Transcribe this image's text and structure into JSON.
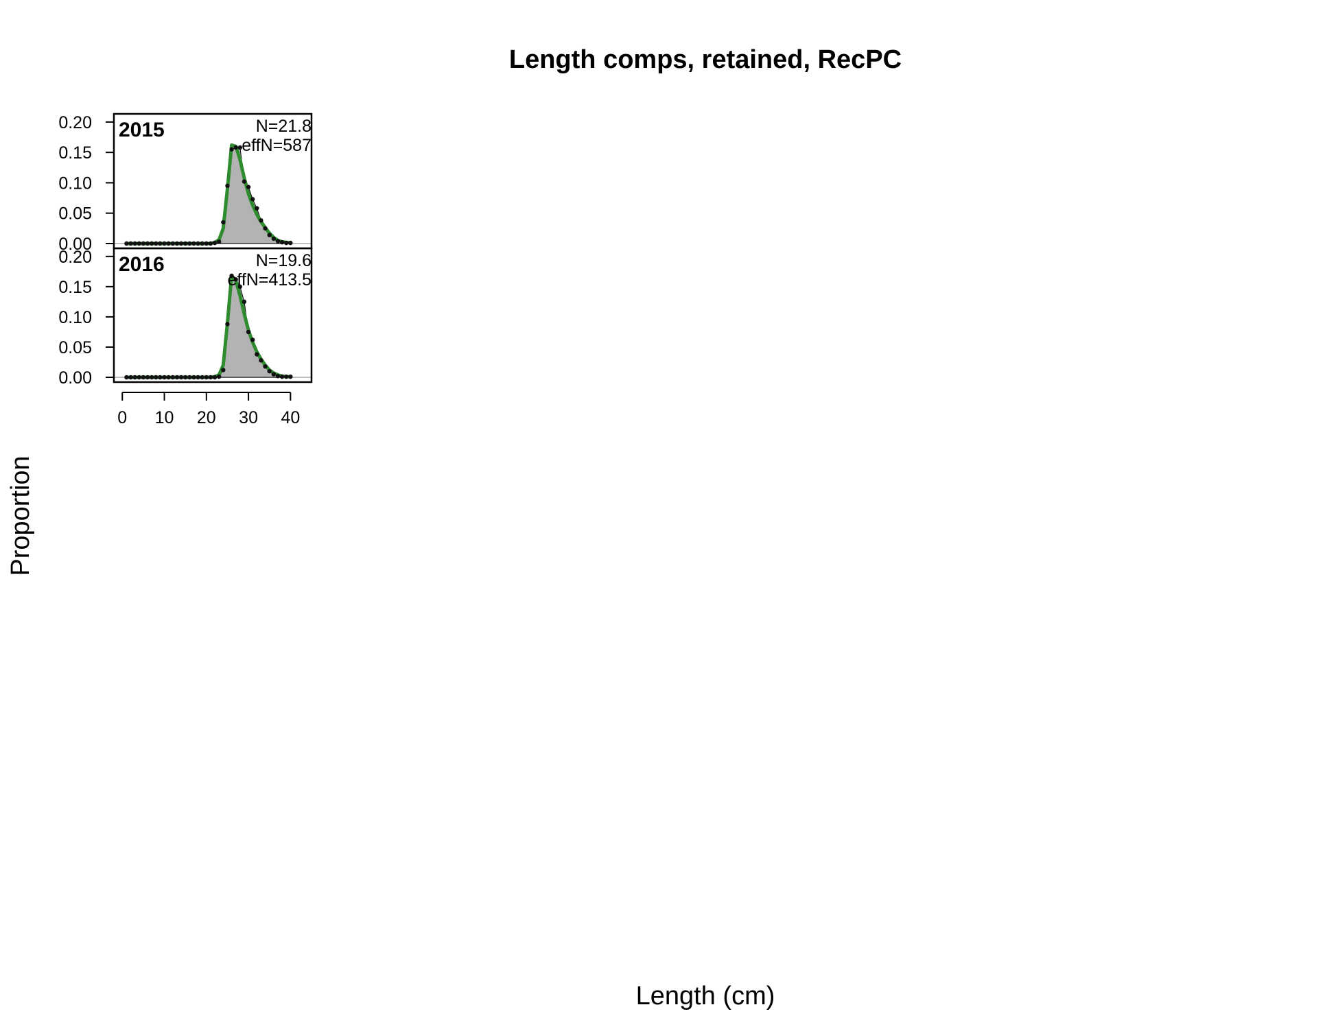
{
  "chart_data": {
    "type": "line",
    "title": "Length comps, retained, RecPC",
    "xlabel": "Length (cm)",
    "ylabel": "Proportion",
    "xlim": [
      -2,
      45
    ],
    "ylim": [
      0,
      0.21
    ],
    "x_ticks": [
      0,
      10,
      20,
      30,
      40
    ],
    "y_ticks": [
      0.0,
      0.05,
      0.1,
      0.15,
      0.2
    ],
    "x_tick_labels": [
      "0",
      "10",
      "20",
      "30",
      "40"
    ],
    "y_tick_labels": [
      "0.00",
      "0.05",
      "0.10",
      "0.15",
      "0.20"
    ],
    "colors": {
      "observed_fill": "#b3b3b3",
      "expected_line": "#2e8b2e",
      "points": "#111111",
      "zero_line": "#bfbfbf"
    },
    "panels": [
      {
        "year": "2015",
        "n_label": "N=21.8",
        "effn_label": "effN=587",
        "x": [
          1,
          2,
          3,
          4,
          5,
          6,
          7,
          8,
          9,
          10,
          11,
          12,
          13,
          14,
          15,
          16,
          17,
          18,
          19,
          20,
          21,
          22,
          23,
          24,
          25,
          26,
          27,
          28,
          29,
          30,
          31,
          32,
          33,
          34,
          35,
          36,
          37,
          38,
          39,
          40
        ],
        "observed": [
          0,
          0,
          0,
          0,
          0,
          0,
          0,
          0,
          0,
          0,
          0,
          0,
          0,
          0,
          0,
          0,
          0,
          0,
          0,
          0,
          0,
          0.001,
          0.003,
          0.035,
          0.095,
          0.155,
          0.158,
          0.158,
          0.102,
          0.093,
          0.073,
          0.058,
          0.038,
          0.025,
          0.014,
          0.008,
          0.004,
          0.002,
          0.001,
          0.001
        ],
        "expected": [
          0,
          0,
          0,
          0,
          0,
          0,
          0,
          0,
          0,
          0,
          0,
          0,
          0,
          0,
          0,
          0,
          0,
          0,
          0,
          0,
          0,
          0.002,
          0.006,
          0.025,
          0.09,
          0.162,
          0.16,
          0.138,
          0.108,
          0.082,
          0.063,
          0.048,
          0.036,
          0.026,
          0.017,
          0.01,
          0.005,
          0.003,
          0.002,
          0.001
        ]
      },
      {
        "year": "2016",
        "n_label": "N=19.6",
        "effn_label": "effN=413.5",
        "x": [
          1,
          2,
          3,
          4,
          5,
          6,
          7,
          8,
          9,
          10,
          11,
          12,
          13,
          14,
          15,
          16,
          17,
          18,
          19,
          20,
          21,
          22,
          23,
          24,
          25,
          26,
          27,
          28,
          29,
          30,
          31,
          32,
          33,
          34,
          35,
          36,
          37,
          38,
          39,
          40
        ],
        "observed": [
          0,
          0,
          0,
          0,
          0,
          0,
          0,
          0,
          0,
          0,
          0,
          0,
          0,
          0,
          0,
          0,
          0,
          0,
          0,
          0,
          0,
          0,
          0.001,
          0.012,
          0.088,
          0.168,
          0.162,
          0.15,
          0.125,
          0.075,
          0.062,
          0.038,
          0.028,
          0.018,
          0.01,
          0.005,
          0.002,
          0.001,
          0.001,
          0.001
        ],
        "expected": [
          0,
          0,
          0,
          0,
          0,
          0,
          0,
          0,
          0,
          0,
          0,
          0,
          0,
          0,
          0,
          0,
          0,
          0,
          0,
          0,
          0,
          0.001,
          0.004,
          0.02,
          0.09,
          0.168,
          0.16,
          0.135,
          0.105,
          0.078,
          0.058,
          0.042,
          0.03,
          0.02,
          0.012,
          0.007,
          0.004,
          0.002,
          0.001,
          0.001
        ]
      }
    ]
  }
}
